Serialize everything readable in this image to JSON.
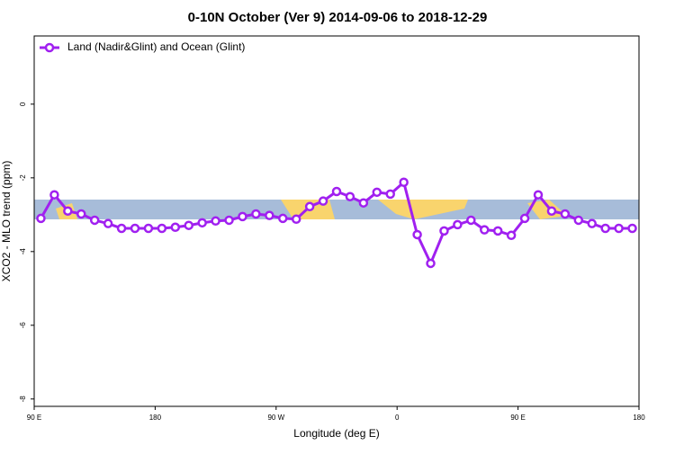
{
  "chart_data": {
    "type": "line",
    "title": "0-10N October (Ver 9)   2014-09-06 to 2018-12-29",
    "x_label": "Longitude (deg E)",
    "y_label": "XCO2 - MLO trend (ppm)",
    "x": [
      95,
      105,
      115,
      125,
      135,
      145,
      155,
      165,
      175,
      185,
      195,
      205,
      215,
      225,
      235,
      245,
      255,
      265,
      275,
      285,
      295,
      305,
      315,
      325,
      335,
      345,
      355,
      365,
      375,
      385,
      395,
      405,
      415,
      425,
      435,
      445,
      455,
      465,
      475,
      485,
      495,
      505,
      515,
      525,
      535
    ],
    "series": [
      {
        "name": "Land (Nadir&Glint) and Ocean (Glint)",
        "color": "#a020f0",
        "values": [
          -3.1,
          -2.46,
          -2.9,
          -2.98,
          -3.15,
          -3.24,
          -3.37,
          -3.37,
          -3.37,
          -3.37,
          -3.34,
          -3.29,
          -3.22,
          -3.17,
          -3.15,
          -3.05,
          -2.98,
          -3.02,
          -3.1,
          -3.12,
          -2.78,
          -2.63,
          -2.37,
          -2.51,
          -2.68,
          -2.39,
          -2.44,
          -2.12,
          -3.54,
          -4.32,
          -3.44,
          -3.27,
          -3.15,
          -3.41,
          -3.44,
          -3.56,
          -3.1,
          -2.46,
          -2.9,
          -2.98,
          -3.15,
          -3.24,
          -3.37,
          -3.37,
          -3.37
        ]
      }
    ],
    "xlim": [
      90,
      540
    ],
    "xticks": [
      {
        "value": 90,
        "label": "90 E"
      },
      180,
      {
        "value": 270,
        "label": "90 W"
      },
      {
        "value": 360,
        "label": "0"
      },
      {
        "value": 450,
        "label": "90 E"
      },
      {
        "value": 540,
        "label": "180"
      }
    ],
    "ylim": [
      -8.2,
      1.85
    ],
    "yticks": [
      0,
      -2,
      -4,
      -6,
      -8
    ],
    "legend": "top-left"
  }
}
